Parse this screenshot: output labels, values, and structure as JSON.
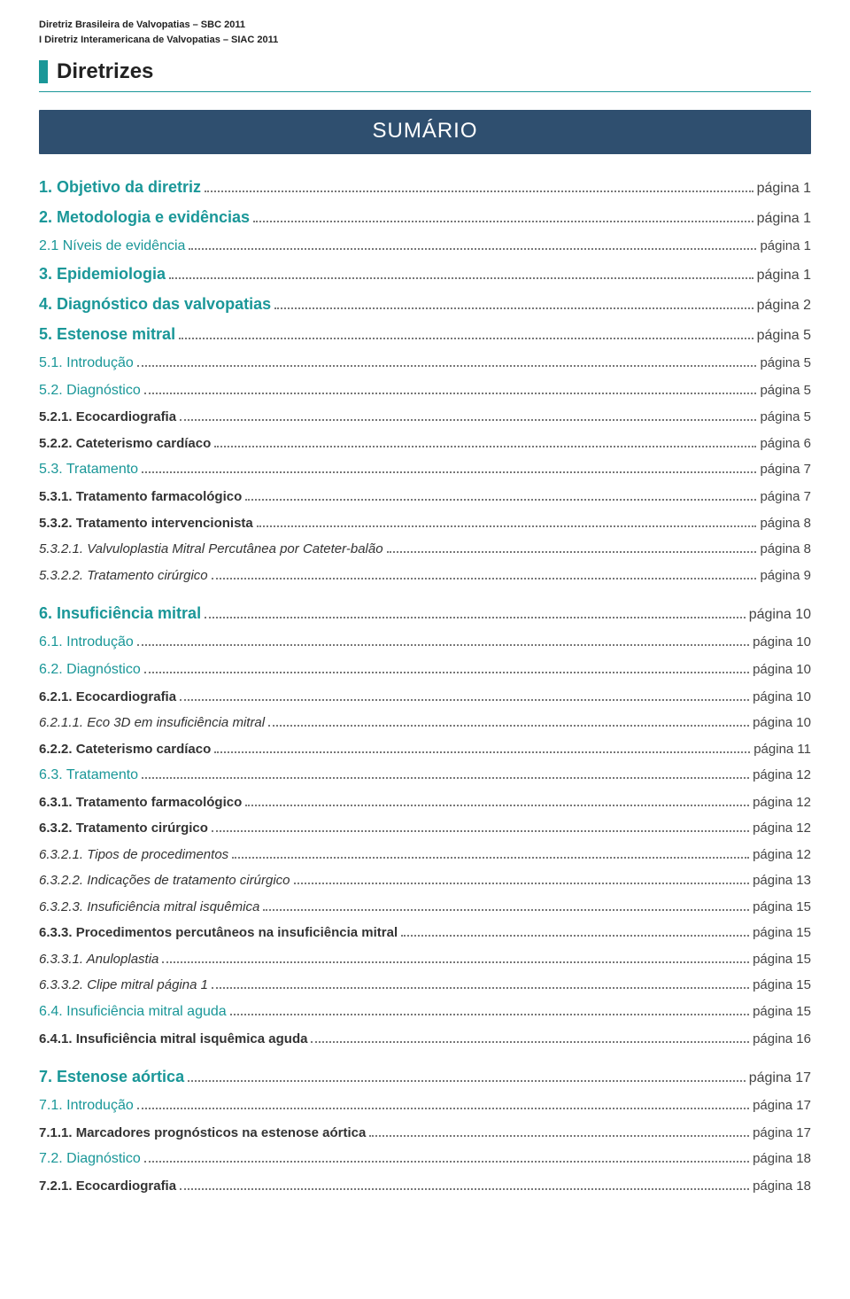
{
  "header": {
    "line1": "Diretriz Brasileira de Valvopatias – SBC 2011",
    "line2": "I Diretriz Interamericana de Valvopatias – SIAC 2011",
    "title": "Diretrizes"
  },
  "banner": "SUMÁRIO",
  "toc": [
    {
      "label": "1. Objetivo da diretriz",
      "page": "página 1",
      "level": "lvl1",
      "gap": false
    },
    {
      "label": "2. Metodologia e evidências",
      "page": "página 1",
      "level": "lvl1",
      "gap": false
    },
    {
      "label": "2.1 Níveis de evidência",
      "page": "página 1",
      "level": "lvl2",
      "gap": false
    },
    {
      "label": "3. Epidemiologia",
      "page": "página 1",
      "level": "lvl1",
      "gap": false
    },
    {
      "label": "4. Diagnóstico das valvopatias",
      "page": "página 2",
      "level": "lvl1",
      "gap": false
    },
    {
      "label": "5. Estenose mitral",
      "page": "página 5",
      "level": "lvl1",
      "gap": false
    },
    {
      "label": "5.1. Introdução",
      "page": "página 5",
      "level": "lvl2",
      "gap": false
    },
    {
      "label": "5.2. Diagnóstico",
      "page": "página 5",
      "level": "lvl2",
      "gap": false
    },
    {
      "label": "5.2.1. Ecocardiografia",
      "page": "página 5",
      "level": "lvl3",
      "gap": false
    },
    {
      "label": "5.2.2. Cateterismo cardíaco",
      "page": "página 6",
      "level": "lvl3",
      "gap": false
    },
    {
      "label": "5.3. Tratamento",
      "page": "página 7",
      "level": "lvl2",
      "gap": false
    },
    {
      "label": "5.3.1. Tratamento farmacológico",
      "page": "página 7",
      "level": "lvl3",
      "gap": false
    },
    {
      "label": "5.3.2. Tratamento intervencionista",
      "page": "página 8",
      "level": "lvl3",
      "gap": false
    },
    {
      "label": "5.3.2.1. Valvuloplastia Mitral Percutânea por Cateter-balão",
      "page": "página 8",
      "level": "lvl4",
      "gap": false
    },
    {
      "label": "5.3.2.2. Tratamento cirúrgico",
      "page": "página 9",
      "level": "lvl4",
      "gap": false
    },
    {
      "label": "6. Insuficiência mitral",
      "page": "página 10",
      "level": "lvl1",
      "gap": true
    },
    {
      "label": "6.1. Introdução",
      "page": "página 10",
      "level": "lvl2",
      "gap": false
    },
    {
      "label": "6.2. Diagnóstico",
      "page": "página 10",
      "level": "lvl2",
      "gap": false
    },
    {
      "label": "6.2.1. Ecocardiografia",
      "page": "página 10",
      "level": "lvl3",
      "gap": false
    },
    {
      "label": "6.2.1.1. Eco 3D em insuficiência mitral",
      "page": "página 10",
      "level": "lvl4",
      "gap": false
    },
    {
      "label": "6.2.2. Cateterismo cardíaco",
      "page": "página 11",
      "level": "lvl3",
      "gap": false
    },
    {
      "label": "6.3. Tratamento",
      "page": "página 12",
      "level": "lvl2",
      "gap": false
    },
    {
      "label": "6.3.1. Tratamento farmacológico",
      "page": "página 12",
      "level": "lvl3",
      "gap": false
    },
    {
      "label": "6.3.2. Tratamento cirúrgico",
      "page": "página 12",
      "level": "lvl3",
      "gap": false
    },
    {
      "label": "6.3.2.1. Tipos de procedimentos",
      "page": "página 12",
      "level": "lvl4",
      "gap": false
    },
    {
      "label": "6.3.2.2. Indicações de tratamento cirúrgico",
      "page": "página 13",
      "level": "lvl4",
      "gap": false
    },
    {
      "label": "6.3.2.3. Insuficiência mitral isquêmica",
      "page": "página 15",
      "level": "lvl4",
      "gap": false
    },
    {
      "label": "6.3.3. Procedimentos percutâneos na insuficiência mitral",
      "page": "página 15",
      "level": "lvl3",
      "gap": false
    },
    {
      "label": "6.3.3.1. Anuloplastia",
      "page": "página 15",
      "level": "lvl4",
      "gap": false
    },
    {
      "label": "6.3.3.2. Clipe mitral página 1",
      "page": "página 15",
      "level": "lvl4",
      "gap": false
    },
    {
      "label": "6.4. Insuficiência mitral aguda",
      "page": "página 15",
      "level": "lvl2",
      "gap": false
    },
    {
      "label": "6.4.1. Insuficiência mitral isquêmica aguda",
      "page": "página 16",
      "level": "lvl3",
      "gap": false
    },
    {
      "label": "7. Estenose aórtica",
      "page": "página 17",
      "level": "lvl1",
      "gap": true
    },
    {
      "label": "7.1. Introdução",
      "page": "página 17",
      "level": "lvl2",
      "gap": false
    },
    {
      "label": "7.1.1. Marcadores prognósticos na estenose aórtica",
      "page": "página 17",
      "level": "lvl3",
      "gap": false
    },
    {
      "label": "7.2. Diagnóstico",
      "page": "página 18",
      "level": "lvl2",
      "gap": false
    },
    {
      "label": "7.2.1. Ecocardiografia",
      "page": "página 18",
      "level": "lvl3",
      "gap": false
    }
  ],
  "colors": {
    "accent": "#1a9798",
    "banner_bg": "#2f4f6f",
    "text": "#333333"
  }
}
